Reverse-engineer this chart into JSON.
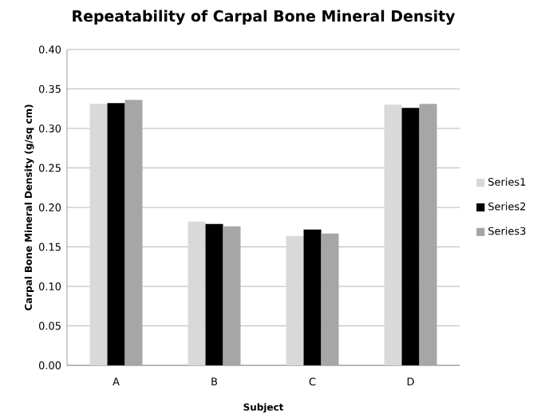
{
  "chart_data": {
    "type": "bar",
    "title": "Repeatability of Carpal Bone Mineral Density",
    "xlabel": "Subject",
    "ylabel": "Carpal Bone Mineral Density (g/sq cm)",
    "categories": [
      "A",
      "B",
      "C",
      "D"
    ],
    "series": [
      {
        "name": "Series1",
        "color": "#d9d9d9",
        "values": [
          0.331,
          0.182,
          0.164,
          0.33
        ]
      },
      {
        "name": "Series2",
        "color": "#000000",
        "values": [
          0.332,
          0.179,
          0.172,
          0.326
        ]
      },
      {
        "name": "Series3",
        "color": "#a6a6a6",
        "values": [
          0.336,
          0.176,
          0.167,
          0.331
        ]
      }
    ],
    "ylim": [
      0,
      0.4
    ],
    "yticks": [
      {
        "value": 0,
        "label": "0.00"
      },
      {
        "value": 0.05,
        "label": "0.05"
      },
      {
        "value": 0.1,
        "label": "0.10"
      },
      {
        "value": 0.15,
        "label": "0.15"
      },
      {
        "value": 0.2,
        "label": "0.20"
      },
      {
        "value": 0.25,
        "label": "0.25"
      },
      {
        "value": 0.3,
        "label": "0.30"
      },
      {
        "value": 0.35,
        "label": "0.35"
      },
      {
        "value": 0.4,
        "label": "0.40"
      }
    ],
    "grid": "y",
    "legend": "right"
  }
}
